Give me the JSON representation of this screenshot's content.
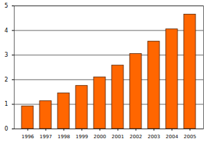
{
  "chart_data": {
    "type": "bar",
    "categories": [
      "1996",
      "1997",
      "1998",
      "1999",
      "2000",
      "2001",
      "2002",
      "2003",
      "2004",
      "2005"
    ],
    "values": [
      0.92,
      1.13,
      1.45,
      1.75,
      2.1,
      2.58,
      3.05,
      3.55,
      4.05,
      4.65
    ],
    "color": "#ff6600",
    "ylim": [
      0,
      5
    ],
    "yticks": [
      0,
      1,
      2,
      3,
      4,
      5
    ],
    "grid": true
  }
}
